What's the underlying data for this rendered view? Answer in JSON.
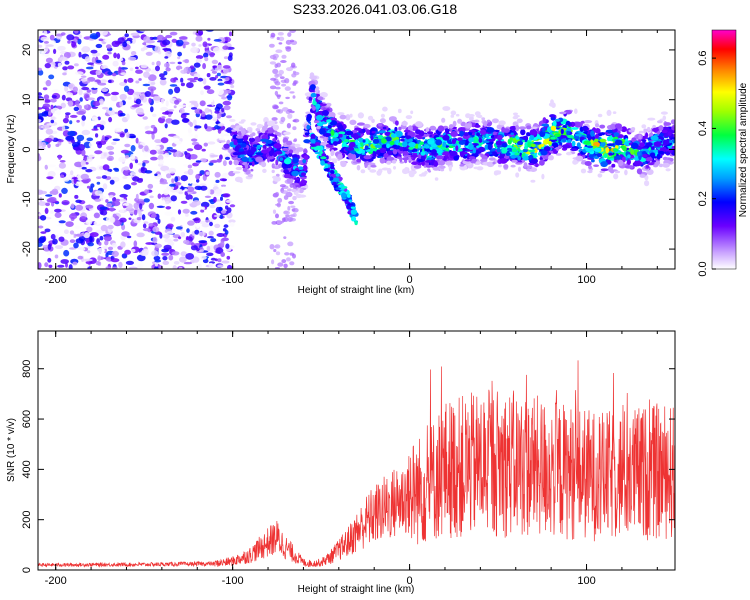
{
  "title": "S233.2026.041.03.06.G18",
  "colors": {
    "snr_line": "#ee3333",
    "axis": "#000000",
    "background": "#ffffff"
  },
  "chart_data": [
    {
      "type": "heatmap",
      "xlabel": "Height of straight line (km)",
      "ylabel": "Frequency (Hz)",
      "xlim": [
        -210,
        150
      ],
      "ylim": [
        -24,
        24
      ],
      "xticks": [
        -200,
        -100,
        0,
        100
      ],
      "yticks": [
        -20,
        -10,
        0,
        10,
        20
      ],
      "xtick_labels": [
        "-200",
        "-100",
        "0",
        "100"
      ],
      "ytick_labels": [
        "-20",
        "-10",
        "0",
        "10",
        "20"
      ],
      "colorbar": {
        "label": "Normalized spectral amplitude",
        "range": [
          0,
          0.68
        ],
        "ticks": [
          0,
          0.2,
          0.4,
          0.6
        ],
        "tick_labels": [
          "0.0",
          "0.2",
          "0.4",
          "0.6"
        ]
      },
      "signal_track": {
        "x": [
          -100,
          -90,
          -80,
          -70,
          -60,
          -55,
          -50,
          -40,
          -30,
          -20,
          -10,
          0,
          10,
          20,
          30,
          40,
          50,
          60,
          70,
          80,
          90,
          100,
          110,
          120,
          130,
          140,
          150
        ],
        "freq": [
          1,
          -1,
          1,
          -2,
          -5,
          11,
          6,
          2,
          1,
          1,
          2,
          1,
          0,
          1,
          1,
          2,
          1,
          1,
          0,
          3,
          4,
          1,
          0,
          1,
          -1,
          1,
          2
        ],
        "amplitude": [
          0.25,
          0.3,
          0.25,
          0.3,
          0.25,
          0.3,
          0.35,
          0.4,
          0.4,
          0.45,
          0.4,
          0.35,
          0.4,
          0.4,
          0.35,
          0.4,
          0.35,
          0.45,
          0.5,
          0.55,
          0.4,
          0.4,
          0.62,
          0.45,
          0.35,
          0.35,
          0.3
        ]
      },
      "secondary_track": {
        "x": [
          -55,
          -50,
          -45,
          -40,
          -35,
          -30
        ],
        "freq": [
          2,
          -1,
          -4,
          -7,
          -10,
          -14
        ]
      },
      "noise_region": {
        "x_from": -210,
        "x_to": -100,
        "max_amplitude": 0.22
      }
    },
    {
      "type": "line",
      "xlabel": "Height of straight line (km)",
      "ylabel": "SNR (10 * v/v)",
      "xlim": [
        -210,
        150
      ],
      "ylim": [
        0,
        950
      ],
      "xticks": [
        -200,
        -100,
        0,
        100
      ],
      "yticks": [
        0,
        200,
        400,
        600,
        800
      ],
      "xtick_labels": [
        "-200",
        "-100",
        "0",
        "100"
      ],
      "ytick_labels": [
        "0",
        "200",
        "400",
        "600",
        "800"
      ],
      "envelope": {
        "x": [
          -210,
          -150,
          -110,
          -100,
          -90,
          -80,
          -75,
          -70,
          -60,
          -55,
          -50,
          -45,
          -40,
          -35,
          -30,
          -25,
          -20,
          -10,
          0,
          10,
          15,
          20,
          30,
          40,
          50,
          60,
          70,
          80,
          90,
          100,
          110,
          120,
          130,
          140,
          150
        ],
        "y": [
          20,
          22,
          25,
          35,
          60,
          110,
          130,
          90,
          30,
          25,
          30,
          50,
          80,
          110,
          150,
          190,
          220,
          260,
          300,
          330,
          370,
          400,
          410,
          420,
          430,
          420,
          410,
          400,
          390,
          380,
          370,
          380,
          385,
          390,
          390
        ]
      }
    }
  ]
}
